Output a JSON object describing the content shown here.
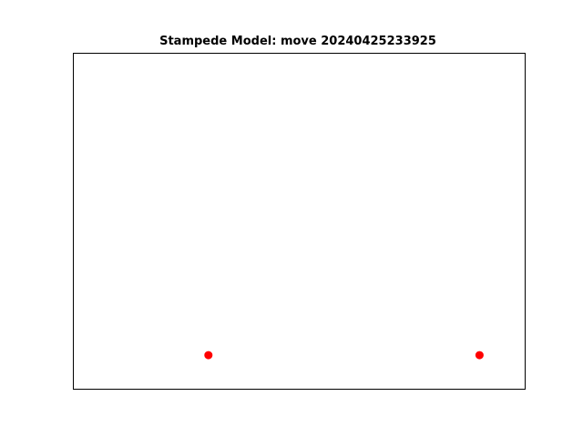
{
  "chart_data": {
    "type": "scatter",
    "title": "Stampede Model: move 20240425233925",
    "xlabel": "",
    "ylabel": "",
    "xlim": [
      0,
      10
    ],
    "ylim": [
      0,
      10
    ],
    "grid": false,
    "axes_ticks": false,
    "series": [
      {
        "color": "#ff0000",
        "points": [
          {
            "x": 3,
            "y": 1
          },
          {
            "x": 9,
            "y": 1
          }
        ]
      }
    ]
  }
}
